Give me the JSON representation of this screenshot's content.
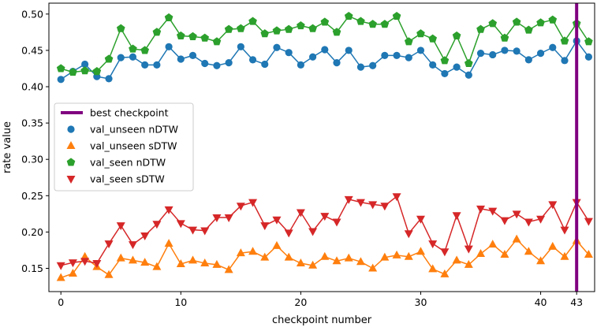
{
  "chart_data": {
    "type": "line",
    "title": "",
    "xlabel": "checkpoint number",
    "ylabel": "rate value",
    "xlim": [
      -1,
      44.5
    ],
    "ylim": [
      0.118,
      0.515
    ],
    "x_ticks": [
      0,
      10,
      20,
      30,
      40,
      43
    ],
    "y_ticks": [
      0.15,
      0.2,
      0.25,
      0.3,
      0.35,
      0.4,
      0.45,
      0.5
    ],
    "y_tick_labels": [
      "0.15",
      "0.20",
      "0.25",
      "0.30",
      "0.35",
      "0.40",
      "0.45",
      "0.50"
    ],
    "grid": false,
    "legend_position": "center-left",
    "vertical_line": {
      "label": "best checkpoint",
      "x": 43,
      "color": "#800080"
    },
    "x": [
      0,
      1,
      2,
      3,
      4,
      5,
      6,
      7,
      8,
      9,
      10,
      11,
      12,
      13,
      14,
      15,
      16,
      17,
      18,
      19,
      20,
      21,
      22,
      23,
      24,
      25,
      26,
      27,
      28,
      29,
      30,
      31,
      32,
      33,
      34,
      35,
      36,
      37,
      38,
      39,
      40,
      41,
      42,
      43,
      44
    ],
    "series": [
      {
        "name": "val_unseen nDTW",
        "marker": "circle",
        "color": "#1f77b4",
        "values": [
          0.41,
          0.421,
          0.431,
          0.414,
          0.411,
          0.44,
          0.441,
          0.43,
          0.43,
          0.455,
          0.438,
          0.443,
          0.432,
          0.429,
          0.433,
          0.455,
          0.437,
          0.431,
          0.454,
          0.447,
          0.43,
          0.441,
          0.451,
          0.433,
          0.45,
          0.427,
          0.429,
          0.443,
          0.443,
          0.44,
          0.45,
          0.43,
          0.418,
          0.427,
          0.416,
          0.446,
          0.444,
          0.45,
          0.449,
          0.437,
          0.446,
          0.454,
          0.436,
          0.463,
          0.441
        ]
      },
      {
        "name": "val_unseen sDTW",
        "marker": "triangle-up",
        "color": "#ff7f0e",
        "values": [
          0.137,
          0.143,
          0.166,
          0.152,
          0.141,
          0.164,
          0.161,
          0.158,
          0.152,
          0.184,
          0.156,
          0.161,
          0.157,
          0.155,
          0.148,
          0.171,
          0.173,
          0.165,
          0.181,
          0.165,
          0.157,
          0.154,
          0.166,
          0.16,
          0.164,
          0.159,
          0.15,
          0.165,
          0.168,
          0.166,
          0.173,
          0.149,
          0.142,
          0.161,
          0.155,
          0.17,
          0.183,
          0.169,
          0.19,
          0.173,
          0.16,
          0.18,
          0.166,
          0.188,
          0.169
        ]
      },
      {
        "name": "val_seen nDTW",
        "marker": "pentagon",
        "color": "#2ca02c",
        "values": [
          0.425,
          0.42,
          0.422,
          0.421,
          0.438,
          0.48,
          0.452,
          0.45,
          0.475,
          0.495,
          0.47,
          0.469,
          0.467,
          0.462,
          0.479,
          0.48,
          0.49,
          0.473,
          0.477,
          0.479,
          0.484,
          0.48,
          0.489,
          0.475,
          0.497,
          0.49,
          0.486,
          0.486,
          0.497,
          0.462,
          0.473,
          0.466,
          0.436,
          0.47,
          0.432,
          0.479,
          0.487,
          0.467,
          0.489,
          0.478,
          0.488,
          0.492,
          0.463,
          0.487,
          0.462
        ]
      },
      {
        "name": "val_seen sDTW",
        "marker": "triangle-down",
        "color": "#d62728",
        "values": [
          0.154,
          0.158,
          0.16,
          0.157,
          0.184,
          0.209,
          0.183,
          0.195,
          0.211,
          0.231,
          0.212,
          0.203,
          0.202,
          0.22,
          0.22,
          0.236,
          0.241,
          0.209,
          0.217,
          0.199,
          0.227,
          0.201,
          0.222,
          0.214,
          0.245,
          0.241,
          0.238,
          0.236,
          0.249,
          0.198,
          0.218,
          0.184,
          0.173,
          0.223,
          0.177,
          0.232,
          0.229,
          0.216,
          0.225,
          0.214,
          0.218,
          0.238,
          0.203,
          0.241,
          0.215
        ]
      }
    ]
  }
}
